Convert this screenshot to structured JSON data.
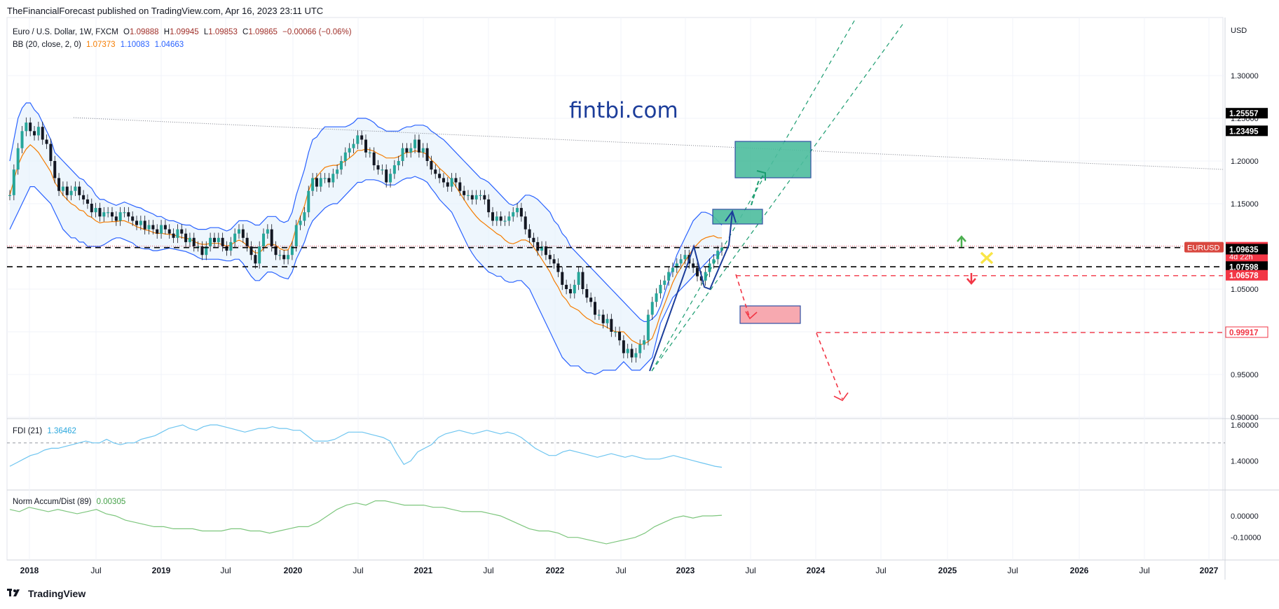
{
  "header": {
    "publisher": "TheFinancialForecast published on TradingView.com, Apr 16, 2023 23:11 UTC"
  },
  "watermark": "fintbi.com",
  "footer": {
    "brand": "TradingView"
  },
  "legend": {
    "symbol": "Euro / U.S. Dollar, 1W, FXCM",
    "o_label": "O",
    "o_value": "1.09888",
    "h_label": "H",
    "h_value": "1.09945",
    "l_label": "L",
    "l_value": "1.09853",
    "c_label": "C",
    "c_value": "1.09865",
    "change": "−0.00066 (−0.06%)",
    "bb_label": "BB (20, close, 2, 0)",
    "bb_mid": "1.07373",
    "bb_upper": "1.10083",
    "bb_lower": "1.04663",
    "fdi_label": "FDI (21)",
    "fdi_value": "1.36462",
    "nad_label": "Norm Accum/Dist (89)",
    "nad_value": "0.00305"
  },
  "colors": {
    "bb_band": "#2962ff",
    "bb_mid": "#f57c00",
    "bb_fill": "#e3f0fb",
    "up_candle": "#26a69a",
    "fdi": "#6ec5f0",
    "nad": "#7dc67d",
    "red_dash": "#f23645",
    "teal_box": "#4dbd9e",
    "pink_box": "#f7a0a8",
    "green_arrow": "#4caf50",
    "red_arrow": "#f23645",
    "x_mark": "#f9e547"
  },
  "chart_data": {
    "type": "candlestick",
    "currency": "USD",
    "price_ticks": [
      "1.30000",
      "1.25000",
      "1.20000",
      "1.15000",
      "1.10000",
      "1.05000",
      "1.00000",
      "0.95000",
      "0.90000"
    ],
    "fdi_ticks": [
      "1.60000",
      "1.40000"
    ],
    "nad_ticks": [
      "0.00000",
      "-0.10000"
    ],
    "x_ticks": [
      "2018",
      "Jul",
      "2019",
      "Jul",
      "2020",
      "Jul",
      "2021",
      "Jul",
      "2022",
      "Jul",
      "2023",
      "Jul",
      "2024",
      "Jul",
      "2025",
      "Jul",
      "2026",
      "Jul",
      "2027"
    ],
    "price_labels": [
      {
        "text": "1.25557",
        "value": 1.25557,
        "style": "black"
      },
      {
        "text": "1.23495",
        "value": 1.23495,
        "style": "black"
      },
      {
        "text": "EURUSD",
        "value": 1.09865,
        "style": "symbol"
      },
      {
        "text": "1.09865",
        "value": 1.09865,
        "style": "red",
        "sub": "4d 22h"
      },
      {
        "text": "1.09635",
        "value": 1.09635,
        "style": "black"
      },
      {
        "text": "1.07598",
        "value": 1.07598,
        "style": "black"
      },
      {
        "text": "1.06578",
        "value": 1.06578,
        "style": "red"
      },
      {
        "text": "0.99917",
        "value": 0.99917,
        "style": "redoutline"
      }
    ],
    "close_series": [
      1.16,
      1.19,
      1.215,
      1.235,
      1.245,
      1.235,
      1.23,
      1.24,
      1.225,
      1.22,
      1.2,
      1.18,
      1.165,
      1.17,
      1.16,
      1.165,
      1.17,
      1.16,
      1.155,
      1.15,
      1.14,
      1.145,
      1.135,
      1.14,
      1.14,
      1.135,
      1.13,
      1.14,
      1.14,
      1.135,
      1.13,
      1.125,
      1.13,
      1.12,
      1.125,
      1.12,
      1.115,
      1.125,
      1.12,
      1.115,
      1.11,
      1.12,
      1.115,
      1.105,
      1.11,
      1.1,
      1.1,
      1.09,
      1.1,
      1.11,
      1.105,
      1.11,
      1.1,
      1.095,
      1.105,
      1.115,
      1.12,
      1.11,
      1.1,
      1.09,
      1.08,
      1.1,
      1.115,
      1.12,
      1.1,
      1.09,
      1.09,
      1.085,
      1.09,
      1.1,
      1.125,
      1.13,
      1.14,
      1.165,
      1.18,
      1.17,
      1.18,
      1.18,
      1.175,
      1.185,
      1.19,
      1.2,
      1.21,
      1.215,
      1.22,
      1.23,
      1.225,
      1.21,
      1.21,
      1.195,
      1.19,
      1.19,
      1.175,
      1.185,
      1.195,
      1.2,
      1.215,
      1.21,
      1.215,
      1.225,
      1.21,
      1.215,
      1.2,
      1.19,
      1.185,
      1.18,
      1.175,
      1.17,
      1.18,
      1.175,
      1.165,
      1.16,
      1.16,
      1.155,
      1.16,
      1.16,
      1.155,
      1.14,
      1.13,
      1.135,
      1.13,
      1.13,
      1.135,
      1.14,
      1.145,
      1.135,
      1.12,
      1.11,
      1.105,
      1.095,
      1.1,
      1.09,
      1.085,
      1.08,
      1.07,
      1.055,
      1.05,
      1.045,
      1.055,
      1.07,
      1.05,
      1.04,
      1.035,
      1.02,
      1.02,
      1.01,
      1.015,
      1.0,
      1.0,
      0.99,
      0.975,
      0.98,
      0.97,
      0.975,
      0.985,
      0.99,
      1.02,
      1.035,
      1.045,
      1.055,
      1.06,
      1.07,
      1.075,
      1.08,
      1.085,
      1.09,
      1.08,
      1.075,
      1.065,
      1.06,
      1.07,
      1.08,
      1.085,
      1.095,
      1.09865
    ],
    "bb_upper_series": [
      1.2,
      1.225,
      1.25,
      1.262,
      1.268,
      1.268,
      1.26,
      1.255,
      1.245,
      1.235,
      1.225,
      1.21,
      1.205,
      1.2,
      1.195,
      1.19,
      1.185,
      1.18,
      1.178,
      1.172,
      1.168,
      1.16,
      1.155,
      1.155,
      1.152,
      1.15,
      1.148,
      1.15,
      1.152,
      1.15,
      1.148,
      1.146,
      1.145,
      1.142,
      1.14,
      1.138,
      1.135,
      1.135,
      1.132,
      1.13,
      1.13,
      1.128,
      1.126,
      1.125,
      1.125,
      1.122,
      1.12,
      1.12,
      1.12,
      1.122,
      1.122,
      1.122,
      1.12,
      1.118,
      1.12,
      1.125,
      1.13,
      1.13,
      1.13,
      1.128,
      1.125,
      1.125,
      1.13,
      1.135,
      1.135,
      1.135,
      1.13,
      1.128,
      1.13,
      1.14,
      1.16,
      1.175,
      1.19,
      1.21,
      1.225,
      1.228,
      1.235,
      1.24,
      1.24,
      1.24,
      1.24,
      1.24,
      1.24,
      1.242,
      1.245,
      1.25,
      1.25,
      1.25,
      1.248,
      1.245,
      1.24,
      1.238,
      1.235,
      1.235,
      1.235,
      1.235,
      1.238,
      1.24,
      1.24,
      1.242,
      1.242,
      1.242,
      1.24,
      1.235,
      1.232,
      1.228,
      1.225,
      1.22,
      1.215,
      1.21,
      1.205,
      1.2,
      1.195,
      1.19,
      1.185,
      1.18,
      1.178,
      1.175,
      1.17,
      1.165,
      1.16,
      1.155,
      1.15,
      1.148,
      1.15,
      1.155,
      1.16,
      1.16,
      1.158,
      1.155,
      1.15,
      1.145,
      1.14,
      1.13,
      1.125,
      1.115,
      1.11,
      1.1,
      1.095,
      1.09,
      1.085,
      1.08,
      1.075,
      1.07,
      1.065,
      1.06,
      1.055,
      1.05,
      1.045,
      1.04,
      1.035,
      1.03,
      1.025,
      1.02,
      1.015,
      1.012,
      1.012,
      1.015,
      1.02,
      1.03,
      1.045,
      1.06,
      1.075,
      1.09,
      1.1,
      1.11,
      1.12,
      1.13,
      1.135,
      1.14,
      1.14,
      1.138,
      1.135,
      1.13,
      1.125,
      1.12,
      1.115,
      1.11,
      1.105,
      1.10083
    ],
    "bb_lower_series": [
      1.12,
      1.13,
      1.14,
      1.15,
      1.16,
      1.17,
      1.17,
      1.165,
      1.16,
      1.155,
      1.15,
      1.14,
      1.13,
      1.12,
      1.115,
      1.11,
      1.11,
      1.105,
      1.105,
      1.1,
      1.1,
      1.1,
      1.1,
      1.102,
      1.105,
      1.108,
      1.11,
      1.11,
      1.108,
      1.106,
      1.104,
      1.1,
      1.098,
      1.097,
      1.097,
      1.095,
      1.095,
      1.096,
      1.097,
      1.098,
      1.097,
      1.096,
      1.095,
      1.094,
      1.092,
      1.09,
      1.087,
      1.085,
      1.085,
      1.085,
      1.085,
      1.085,
      1.084,
      1.083,
      1.083,
      1.085,
      1.085,
      1.08,
      1.072,
      1.065,
      1.06,
      1.06,
      1.065,
      1.07,
      1.07,
      1.068,
      1.065,
      1.063,
      1.062,
      1.07,
      1.085,
      1.095,
      1.105,
      1.12,
      1.13,
      1.135,
      1.14,
      1.145,
      1.148,
      1.15,
      1.15,
      1.155,
      1.16,
      1.165,
      1.17,
      1.175,
      1.175,
      1.178,
      1.178,
      1.178,
      1.177,
      1.175,
      1.172,
      1.172,
      1.172,
      1.175,
      1.178,
      1.18,
      1.18,
      1.182,
      1.18,
      1.178,
      1.175,
      1.168,
      1.162,
      1.155,
      1.15,
      1.145,
      1.14,
      1.13,
      1.12,
      1.11,
      1.1,
      1.092,
      1.085,
      1.08,
      1.075,
      1.07,
      1.068,
      1.065,
      1.065,
      1.06,
      1.058,
      1.058,
      1.06,
      1.06,
      1.055,
      1.05,
      1.04,
      1.03,
      1.02,
      1.01,
      1.0,
      0.99,
      0.98,
      0.97,
      0.965,
      0.96,
      0.96,
      0.96,
      0.955,
      0.952,
      0.952,
      0.95,
      0.952,
      0.955,
      0.955,
      0.955,
      0.955,
      0.96,
      0.965,
      0.96,
      0.955,
      0.955,
      0.955,
      0.96,
      0.965,
      0.97,
      0.99,
      1.01,
      1.02,
      1.03,
      1.04,
      1.045,
      1.05,
      1.055,
      1.06,
      1.065,
      1.07,
      1.075,
      1.08,
      1.085,
      1.09,
      1.09,
      1.095,
      1.1,
      1.1,
      1.04663
    ],
    "fdi_series": [
      1.37,
      1.39,
      1.41,
      1.43,
      1.44,
      1.46,
      1.47,
      1.47,
      1.48,
      1.49,
      1.5,
      1.51,
      1.5,
      1.5,
      1.52,
      1.5,
      1.49,
      1.5,
      1.5,
      1.52,
      1.53,
      1.54,
      1.56,
      1.58,
      1.59,
      1.6,
      1.58,
      1.57,
      1.59,
      1.6,
      1.6,
      1.59,
      1.58,
      1.57,
      1.56,
      1.57,
      1.58,
      1.58,
      1.59,
      1.58,
      1.58,
      1.57,
      1.57,
      1.54,
      1.51,
      1.51,
      1.51,
      1.52,
      1.54,
      1.56,
      1.56,
      1.56,
      1.55,
      1.54,
      1.53,
      1.51,
      1.44,
      1.38,
      1.4,
      1.45,
      1.47,
      1.49,
      1.53,
      1.55,
      1.56,
      1.57,
      1.56,
      1.55,
      1.56,
      1.57,
      1.56,
      1.55,
      1.56,
      1.55,
      1.53,
      1.5,
      1.47,
      1.45,
      1.43,
      1.43,
      1.45,
      1.46,
      1.45,
      1.44,
      1.43,
      1.42,
      1.43,
      1.44,
      1.43,
      1.42,
      1.43,
      1.42,
      1.41,
      1.41,
      1.41,
      1.42,
      1.43,
      1.42,
      1.41,
      1.4,
      1.39,
      1.38,
      1.37,
      1.36462
    ],
    "nad_series": [
      0.03,
      0.02,
      0.04,
      0.03,
      0.02,
      0.03,
      0.02,
      0.01,
      0.02,
      0.03,
      0.01,
      0.0,
      -0.02,
      -0.03,
      -0.04,
      -0.05,
      -0.05,
      -0.06,
      -0.06,
      -0.06,
      -0.07,
      -0.07,
      -0.07,
      -0.06,
      -0.06,
      -0.07,
      -0.07,
      -0.08,
      -0.07,
      -0.06,
      -0.05,
      -0.05,
      -0.03,
      0.0,
      0.03,
      0.05,
      0.06,
      0.05,
      0.07,
      0.07,
      0.06,
      0.05,
      0.05,
      0.05,
      0.04,
      0.04,
      0.03,
      0.02,
      0.02,
      0.02,
      0.01,
      0.0,
      -0.02,
      -0.04,
      -0.06,
      -0.07,
      -0.07,
      -0.08,
      -0.1,
      -0.1,
      -0.11,
      -0.12,
      -0.13,
      -0.12,
      -0.11,
      -0.1,
      -0.08,
      -0.05,
      -0.03,
      -0.01,
      0.0,
      -0.01,
      0.0,
      0.0,
      0.00305
    ]
  }
}
